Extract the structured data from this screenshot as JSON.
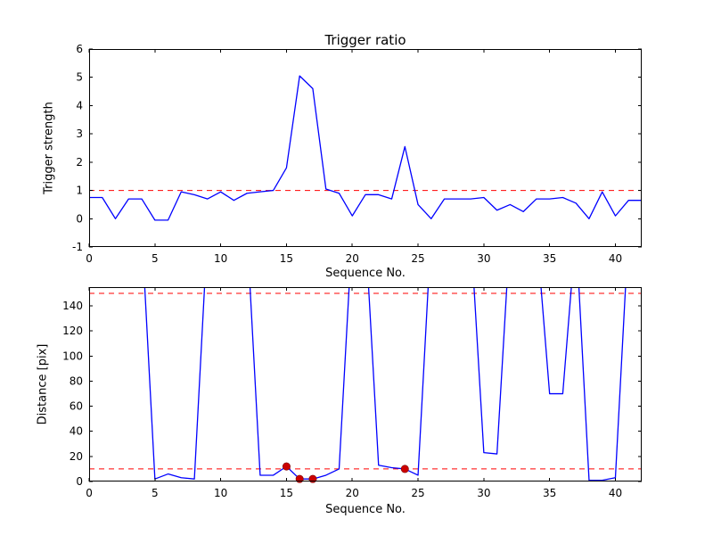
{
  "figure": {
    "background": "#ffffff",
    "line_color": "#0000ff",
    "dashed_color": "#ff0000",
    "marker_color": "#cc0000",
    "axis_color": "#000000"
  },
  "chart_data": [
    {
      "type": "line",
      "title": "Trigger ratio",
      "xlabel": "Sequence No.",
      "ylabel": "Trigger strength",
      "xlim": [
        0,
        42
      ],
      "ylim": [
        -1,
        6
      ],
      "xticks": [
        0,
        5,
        10,
        15,
        20,
        25,
        30,
        35,
        40
      ],
      "yticks": [
        -1,
        0,
        1,
        2,
        3,
        4,
        5,
        6
      ],
      "hlines": [
        1
      ],
      "grid": false,
      "legend": "none",
      "x": [
        0,
        1,
        2,
        3,
        4,
        5,
        6,
        7,
        8,
        9,
        10,
        11,
        12,
        13,
        14,
        15,
        16,
        17,
        18,
        19,
        20,
        21,
        22,
        23,
        24,
        25,
        26,
        27,
        28,
        29,
        30,
        31,
        32,
        33,
        34,
        35,
        36,
        37,
        38,
        39,
        40,
        41,
        42
      ],
      "y": [
        0.75,
        0.75,
        0.0,
        0.7,
        0.7,
        -0.05,
        -0.05,
        0.95,
        0.85,
        0.7,
        0.95,
        0.65,
        0.9,
        0.95,
        1.0,
        1.8,
        5.05,
        4.6,
        1.05,
        0.9,
        0.1,
        0.85,
        0.85,
        0.7,
        2.55,
        0.5,
        0.0,
        0.7,
        0.7,
        0.7,
        0.75,
        0.3,
        0.5,
        0.25,
        0.7,
        0.7,
        0.75,
        0.55,
        0.0,
        0.95,
        0.1,
        0.65,
        0.65
      ],
      "markers": []
    },
    {
      "type": "line",
      "title": "",
      "xlabel": "Sequence No.",
      "ylabel": "Distance [pix]",
      "xlim": [
        0,
        42
      ],
      "ylim": [
        0,
        155
      ],
      "xticks": [
        0,
        5,
        10,
        15,
        20,
        25,
        30,
        35,
        40
      ],
      "yticks": [
        0,
        20,
        40,
        60,
        80,
        100,
        120,
        140
      ],
      "hlines": [
        150,
        10
      ],
      "grid": false,
      "legend": "none",
      "x": [
        0,
        1,
        2,
        3,
        4,
        5,
        6,
        7,
        8,
        9,
        10,
        11,
        12,
        13,
        14,
        15,
        16,
        17,
        18,
        19,
        20,
        21,
        22,
        23,
        24,
        25,
        26,
        27,
        28,
        29,
        30,
        31,
        32,
        33,
        34,
        35,
        36,
        37,
        38,
        39,
        40,
        41,
        42
      ],
      "y": [
        200,
        200,
        200,
        200,
        200,
        2,
        6,
        3,
        2,
        200,
        200,
        200,
        200,
        5,
        5,
        12,
        2,
        2,
        5,
        10,
        200,
        200,
        13,
        11,
        10,
        5,
        200,
        200,
        200,
        200,
        23,
        22,
        200,
        200,
        200,
        70,
        70,
        200,
        1,
        1,
        3,
        200,
        200
      ],
      "markers": [
        [
          15,
          12
        ],
        [
          16,
          2
        ],
        [
          17,
          2
        ],
        [
          24,
          10
        ]
      ]
    }
  ]
}
